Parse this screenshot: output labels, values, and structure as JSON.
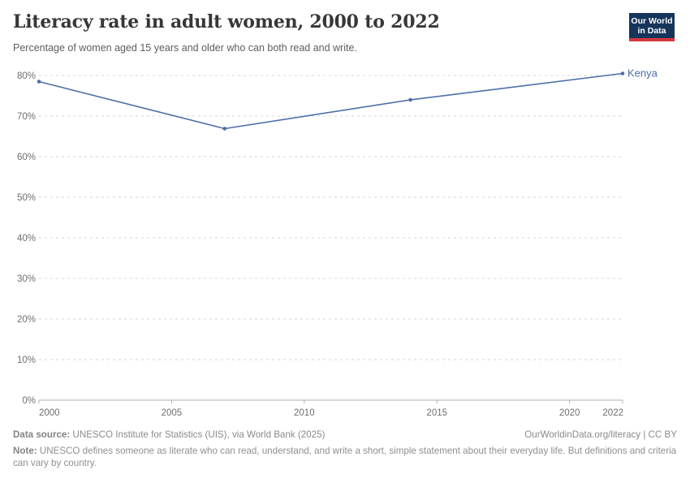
{
  "header": {
    "title": "Literacy rate in adult women, 2000 to 2022",
    "subtitle": "Percentage of women aged 15 years and older who can both read and write.",
    "logo": {
      "line1": "Our World",
      "line2": "in Data",
      "bg": "#16355a",
      "accent": "#d4373e"
    }
  },
  "chart_data": {
    "type": "line",
    "title": "Literacy rate in adult women, 2000 to 2022",
    "xlabel": "",
    "ylabel": "",
    "x": {
      "min": 2000,
      "max": 2022,
      "ticks": [
        2000,
        2005,
        2010,
        2015,
        2020,
        2022
      ]
    },
    "y": {
      "min": 0,
      "max": 80,
      "ticks": [
        0,
        10,
        20,
        30,
        40,
        50,
        60,
        70,
        80
      ],
      "tick_suffix": "%"
    },
    "grid": "horizontal-dashed",
    "legend_position": "end-of-line-label",
    "series": [
      {
        "name": "Kenya",
        "color": "#4c6ea8",
        "points": [
          {
            "x": 2000,
            "y": 78.5
          },
          {
            "x": 2007,
            "y": 66.9
          },
          {
            "x": 2014,
            "y": 74.0
          },
          {
            "x": 2022,
            "y": 80.5
          }
        ]
      }
    ],
    "colors": {
      "grid": "#d6d6d6",
      "axis": "#b0b0b0",
      "tick_label": "#6f6f6f"
    }
  },
  "footer": {
    "source_label": "Data source:",
    "source_text": " UNESCO Institute for Statistics (UIS), via World Bank (2025)",
    "link_text": "OurWorldinData.org/literacy | CC BY",
    "note_label": "Note:",
    "note_text": " UNESCO defines someone as literate who can read, understand, and write a short, simple statement about their everyday life. But definitions and criteria can vary by country."
  }
}
